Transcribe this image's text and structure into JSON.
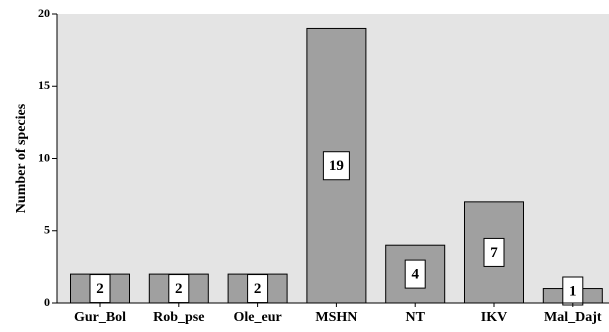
{
  "chart_data": {
    "type": "bar",
    "title": "",
    "xlabel": "",
    "ylabel": "Number of species",
    "categories": [
      "Gur_Bol",
      "Rob_pse",
      "Ole_eur",
      "MSHN",
      "NT",
      "IKV",
      "Mal_Dajt"
    ],
    "values": [
      2,
      2,
      2,
      19,
      4,
      7,
      1
    ],
    "data_labels": [
      "2",
      "2",
      "2",
      "19",
      "4",
      "7",
      "1"
    ],
    "yticks": [
      0,
      5,
      10,
      15,
      20
    ],
    "ytick_labels": [
      "0",
      "5",
      "10",
      "15",
      "20"
    ],
    "ylim": [
      0,
      20
    ],
    "grid": false,
    "legend": "none",
    "colors": {
      "plot_background": "#e4e4e4",
      "bar_fill": "#a0a0a0",
      "bar_stroke": "#000000",
      "label_box_fill": "#ffffff",
      "axis": "#000000"
    }
  }
}
